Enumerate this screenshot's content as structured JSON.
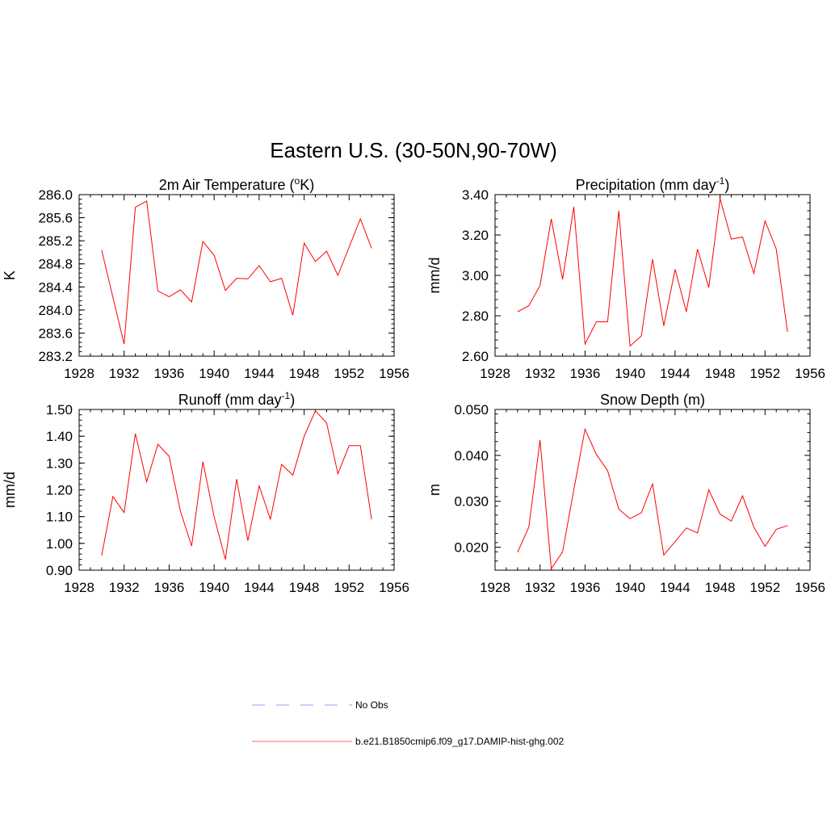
{
  "figure": {
    "title": "Eastern U.S. (30-50N,90-70W)"
  },
  "legend": [
    {
      "label": "No Obs",
      "color": "#9999ff",
      "dash": true
    },
    {
      "label": "b.e21.B1850cmip6.f09_g17.DAMIP-hist-ghg.002",
      "color": "#ff6666",
      "dash": false
    }
  ],
  "colors": {
    "series": "#ff0000",
    "axis": "#000000"
  },
  "chart_data": [
    {
      "type": "line",
      "title": "2m Air Temperature (",
      "title_sup": "o",
      "title_tail": "K)",
      "ylabel": "K",
      "xlim": [
        1928,
        1956
      ],
      "ylim": [
        283.2,
        286.0
      ],
      "xticks": [
        1928,
        1932,
        1936,
        1940,
        1944,
        1948,
        1952,
        1956
      ],
      "yticks": [
        "283.2",
        "283.6",
        "284.0",
        "284.4",
        "284.8",
        "285.2",
        "285.6",
        "286.0"
      ],
      "series": [
        {
          "x": [
            1930,
            1931,
            1932,
            1933,
            1934,
            1935,
            1936,
            1937,
            1938,
            1939,
            1940,
            1941,
            1942,
            1943,
            1944,
            1945,
            1946,
            1947,
            1948,
            1949,
            1950,
            1951,
            1952,
            1953,
            1954
          ],
          "values": [
            285.04,
            284.22,
            283.41,
            285.78,
            285.89,
            284.33,
            284.23,
            284.35,
            284.14,
            285.19,
            284.95,
            284.34,
            284.55,
            284.54,
            284.77,
            284.49,
            284.55,
            283.91,
            285.16,
            284.84,
            285.02,
            284.6,
            285.09,
            285.58,
            285.07
          ]
        }
      ]
    },
    {
      "type": "line",
      "title": "Precipitation (mm day",
      "title_sup": "-1",
      "title_tail": ")",
      "ylabel": "mm/d",
      "xlim": [
        1928,
        1956
      ],
      "ylim": [
        2.6,
        3.4
      ],
      "xticks": [
        1928,
        1932,
        1936,
        1940,
        1944,
        1948,
        1952,
        1956
      ],
      "yticks": [
        "2.60",
        "2.80",
        "3.00",
        "3.20",
        "3.40"
      ],
      "series": [
        {
          "x": [
            1930,
            1931,
            1932,
            1933,
            1934,
            1935,
            1936,
            1937,
            1938,
            1939,
            1940,
            1941,
            1942,
            1943,
            1944,
            1945,
            1946,
            1947,
            1948,
            1949,
            1950,
            1951,
            1952,
            1953,
            1954
          ],
          "values": [
            2.82,
            2.85,
            2.95,
            3.28,
            2.98,
            3.34,
            2.66,
            2.77,
            2.77,
            3.32,
            2.65,
            2.7,
            3.08,
            2.75,
            3.03,
            2.82,
            3.13,
            2.94,
            3.38,
            3.18,
            3.19,
            3.01,
            3.27,
            3.13,
            2.72
          ]
        }
      ]
    },
    {
      "type": "line",
      "title": "Runoff (mm day",
      "title_sup": "-1",
      "title_tail": ")",
      "ylabel": "mm/d",
      "xlim": [
        1928,
        1956
      ],
      "ylim": [
        0.9,
        1.5
      ],
      "xticks": [
        1928,
        1932,
        1936,
        1940,
        1944,
        1948,
        1952,
        1956
      ],
      "yticks": [
        "0.90",
        "1.00",
        "1.10",
        "1.20",
        "1.30",
        "1.40",
        "1.50"
      ],
      "series": [
        {
          "x": [
            1930,
            1931,
            1932,
            1933,
            1934,
            1935,
            1936,
            1937,
            1938,
            1939,
            1940,
            1941,
            1942,
            1943,
            1944,
            1945,
            1946,
            1947,
            1948,
            1949,
            1950,
            1951,
            1952,
            1953,
            1954
          ],
          "values": [
            0.955,
            1.175,
            1.115,
            1.41,
            1.23,
            1.37,
            1.325,
            1.12,
            0.99,
            1.305,
            1.1,
            0.94,
            1.24,
            1.01,
            1.215,
            1.09,
            1.295,
            1.255,
            1.4,
            1.495,
            1.45,
            1.26,
            1.365,
            1.365,
            1.09
          ]
        }
      ]
    },
    {
      "type": "line",
      "title": "Snow Depth (m)",
      "title_sup": "",
      "title_tail": "",
      "ylabel": "m",
      "xlim": [
        1928,
        1956
      ],
      "ylim": [
        0.015,
        0.05
      ],
      "xticks": [
        1928,
        1932,
        1936,
        1940,
        1944,
        1948,
        1952,
        1956
      ],
      "yticks": [
        "0.020",
        "0.030",
        "0.040",
        "0.050"
      ],
      "series": [
        {
          "x": [
            1930,
            1931,
            1932,
            1933,
            1934,
            1935,
            1936,
            1937,
            1938,
            1939,
            1940,
            1941,
            1942,
            1943,
            1944,
            1945,
            1946,
            1947,
            1948,
            1949,
            1950,
            1951,
            1952,
            1953,
            1954
          ],
          "values": [
            0.0189,
            0.0244,
            0.0433,
            0.0153,
            0.019,
            0.0325,
            0.0457,
            0.0402,
            0.0367,
            0.0283,
            0.0262,
            0.0275,
            0.0338,
            0.0183,
            0.0212,
            0.0242,
            0.0231,
            0.0325,
            0.0272,
            0.0257,
            0.0312,
            0.0244,
            0.0202,
            0.0239,
            0.0247
          ]
        }
      ]
    }
  ]
}
